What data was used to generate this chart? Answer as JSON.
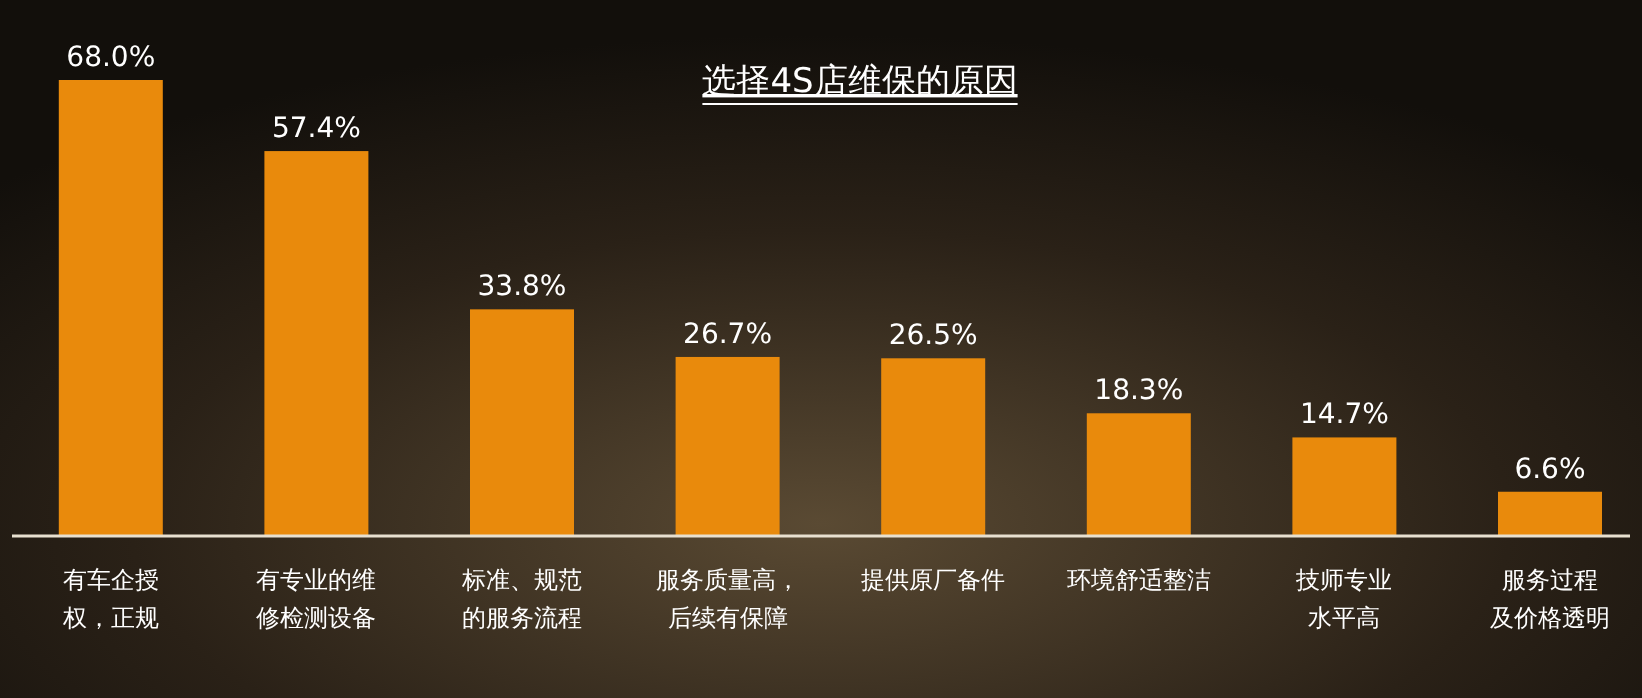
{
  "chart_data": {
    "type": "bar",
    "title": "选择4S店维保的原因",
    "categories": [
      "有车企授权，正规",
      "有专业的维修检测设备",
      "标准、规范的服务流程",
      "服务质量高，后续有保障",
      "提供原厂备件",
      "环境舒适整洁",
      "技师专业水平高",
      "服务过程及价格透明"
    ],
    "values": [
      68.0,
      57.4,
      33.8,
      26.7,
      26.5,
      18.3,
      14.7,
      6.6
    ],
    "value_labels": [
      "68.0%",
      "57.4%",
      "33.8%",
      "26.7%",
      "26.5%",
      "18.3%",
      "14.7%",
      "6.6%"
    ],
    "color": "#e98a0c"
  }
}
